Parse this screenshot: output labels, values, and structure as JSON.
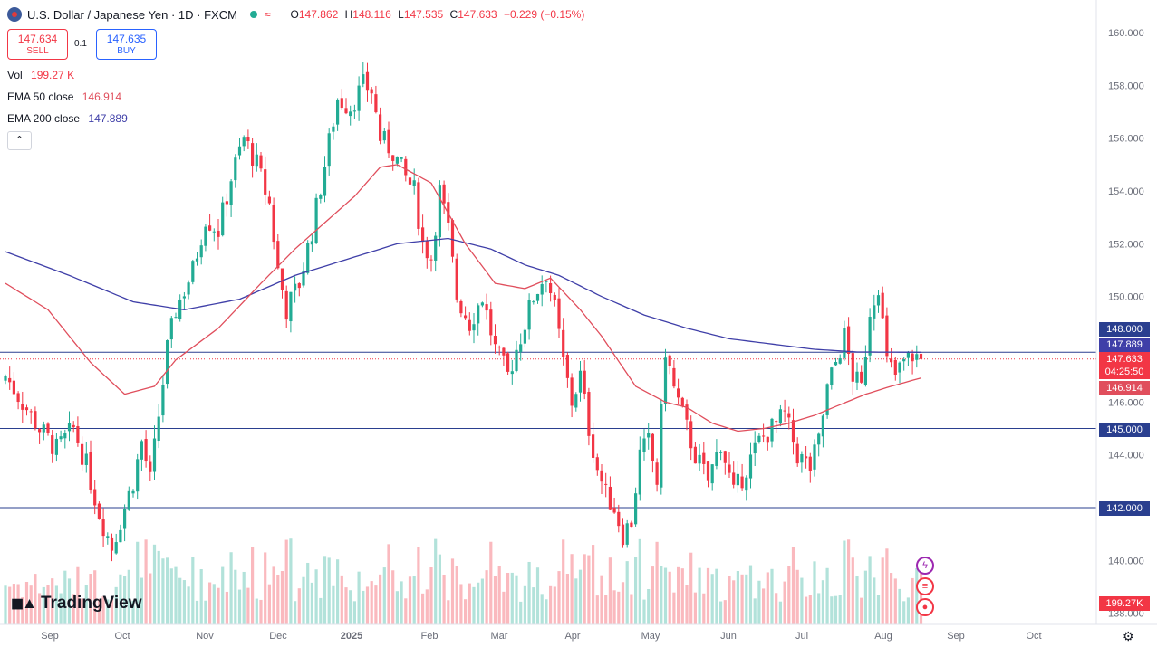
{
  "header": {
    "symbol_title": "U.S. Dollar / Japanese Yen · 1D · FXCM",
    "open_label": "O",
    "open": "147.862",
    "high_label": "H",
    "high": "148.116",
    "low_label": "L",
    "low": "147.535",
    "close_label": "C",
    "close": "147.633",
    "change": "−0.229 (−0.15%)"
  },
  "trade": {
    "sell_price": "147.634",
    "sell_label": "SELL",
    "spread": "0.1",
    "buy_price": "147.635",
    "buy_label": "BUY"
  },
  "indicators": {
    "vol_label": "Vol",
    "vol_value": "199.27 K",
    "ema50_label": "EMA 50 close",
    "ema50_value": "146.914",
    "ema200_label": "EMA 200 close",
    "ema200_value": "147.889"
  },
  "price_tags": {
    "level_148": "148.000",
    "ema200": "147.889",
    "last": "147.633",
    "countdown": "04:25:50",
    "ema50": "146.914",
    "level_145": "145.000",
    "level_142": "142.000",
    "volume": "199.27K"
  },
  "brand": {
    "logo_text": "TradingView"
  },
  "colors": {
    "up": "#22ab94",
    "down": "#f23645",
    "ema50": "#e04e5c",
    "ema200": "#3f3fa8",
    "hline": "#2a3f8f"
  },
  "icons": [
    "flag-icon",
    "lightning-icon",
    "us-flag-icon",
    "event-icon",
    "settings-icon",
    "collapse-icon"
  ],
  "chart_data": {
    "type": "candlestick",
    "title": "U.S. Dollar / Japanese Yen · 1D · FXCM",
    "y_ticks": [
      "160.000",
      "158.000",
      "156.000",
      "154.000",
      "152.000",
      "150.000",
      "148.000",
      "146.000",
      "144.000",
      "142.000",
      "140.000",
      "138.000"
    ],
    "x_ticks": [
      "Sep",
      "Oct",
      "Nov",
      "Dec",
      "2025",
      "Feb",
      "Mar",
      "Apr",
      "May",
      "Jun",
      "Jul",
      "Aug",
      "Sep",
      "Oct"
    ],
    "ylim": [
      137.5,
      160.5
    ],
    "horizontal_lines": [
      147.889,
      145.0,
      142.0
    ],
    "last_price": 147.633,
    "anchor_closes": [
      [
        0,
        147.0
      ],
      [
        4,
        146.0
      ],
      [
        8,
        145.0
      ],
      [
        12,
        144.2
      ],
      [
        16,
        145.0
      ],
      [
        19,
        143.6
      ],
      [
        22,
        141.8
      ],
      [
        25,
        140.5
      ],
      [
        28,
        142.0
      ],
      [
        30,
        143.0
      ],
      [
        32,
        144.5
      ],
      [
        34,
        143.0
      ],
      [
        36,
        145.5
      ],
      [
        38,
        148.0
      ],
      [
        40,
        149.5
      ],
      [
        44,
        151.0
      ],
      [
        47,
        153.0
      ],
      [
        50,
        152.5
      ],
      [
        53,
        154.5
      ],
      [
        56,
        156.0
      ],
      [
        59,
        155.0
      ],
      [
        62,
        153.5
      ],
      [
        64,
        151.0
      ],
      [
        66,
        149.5
      ],
      [
        69,
        150.5
      ],
      [
        72,
        152.5
      ],
      [
        75,
        155.0
      ],
      [
        78,
        157.5
      ],
      [
        81,
        157.2
      ],
      [
        84,
        158.0
      ],
      [
        86,
        157.8
      ],
      [
        88,
        156.0
      ],
      [
        91,
        155.5
      ],
      [
        94,
        154.5
      ],
      [
        96,
        154.0
      ],
      [
        98,
        152.0
      ],
      [
        100,
        151.5
      ],
      [
        102,
        154.0
      ],
      [
        104,
        152.5
      ],
      [
        106,
        150.0
      ],
      [
        109,
        149.0
      ],
      [
        112,
        150.0
      ],
      [
        115,
        148.0
      ],
      [
        118,
        147.0
      ],
      [
        121,
        148.5
      ],
      [
        124,
        150.0
      ],
      [
        127,
        150.9
      ],
      [
        129,
        149.5
      ],
      [
        131,
        147.5
      ],
      [
        133,
        146.0
      ],
      [
        135,
        147.0
      ],
      [
        137,
        145.0
      ],
      [
        139,
        143.5
      ],
      [
        141,
        142.5
      ],
      [
        143,
        142.0
      ],
      [
        145,
        141.0
      ],
      [
        147,
        141.5
      ],
      [
        149,
        144.0
      ],
      [
        151,
        144.5
      ],
      [
        153,
        143.0
      ],
      [
        155,
        148.0
      ],
      [
        157,
        146.5
      ],
      [
        159,
        145.5
      ],
      [
        162,
        144.0
      ],
      [
        165,
        143.0
      ],
      [
        168,
        144.5
      ],
      [
        171,
        142.5
      ],
      [
        174,
        143.5
      ],
      [
        177,
        144.5
      ],
      [
        180,
        145.0
      ],
      [
        183,
        145.5
      ],
      [
        186,
        144.0
      ],
      [
        189,
        143.5
      ],
      [
        191,
        144.5
      ],
      [
        193,
        146.5
      ],
      [
        195,
        147.5
      ],
      [
        197,
        148.5
      ],
      [
        199,
        147.0
      ],
      [
        201,
        146.5
      ],
      [
        203,
        149.5
      ],
      [
        205,
        150.5
      ],
      [
        207,
        147.5
      ],
      [
        209,
        147.0
      ],
      [
        211,
        147.5
      ],
      [
        213,
        147.8
      ],
      [
        215,
        147.633
      ]
    ],
    "ema50": [
      [
        0,
        150.5
      ],
      [
        10,
        149.5
      ],
      [
        20,
        147.5
      ],
      [
        28,
        146.3
      ],
      [
        35,
        146.6
      ],
      [
        40,
        147.6
      ],
      [
        50,
        148.8
      ],
      [
        60,
        150.5
      ],
      [
        68,
        151.8
      ],
      [
        75,
        152.8
      ],
      [
        82,
        153.8
      ],
      [
        88,
        154.9
      ],
      [
        92,
        155.0
      ],
      [
        100,
        154.3
      ],
      [
        108,
        152.0
      ],
      [
        115,
        150.5
      ],
      [
        122,
        150.3
      ],
      [
        128,
        150.7
      ],
      [
        135,
        149.5
      ],
      [
        140,
        148.5
      ],
      [
        148,
        146.6
      ],
      [
        155,
        146.0
      ],
      [
        160,
        145.8
      ],
      [
        166,
        145.2
      ],
      [
        172,
        144.9
      ],
      [
        178,
        145.0
      ],
      [
        184,
        145.2
      ],
      [
        190,
        145.5
      ],
      [
        196,
        145.9
      ],
      [
        202,
        146.3
      ],
      [
        208,
        146.6
      ],
      [
        215,
        146.914
      ]
    ],
    "ema200": [
      [
        0,
        151.7
      ],
      [
        15,
        150.8
      ],
      [
        30,
        149.8
      ],
      [
        42,
        149.5
      ],
      [
        55,
        149.9
      ],
      [
        68,
        150.8
      ],
      [
        80,
        151.4
      ],
      [
        92,
        152.0
      ],
      [
        104,
        152.2
      ],
      [
        114,
        151.8
      ],
      [
        122,
        151.2
      ],
      [
        130,
        150.8
      ],
      [
        140,
        150.0
      ],
      [
        150,
        149.3
      ],
      [
        160,
        148.8
      ],
      [
        170,
        148.4
      ],
      [
        180,
        148.2
      ],
      [
        190,
        148.0
      ],
      [
        200,
        147.9
      ],
      [
        215,
        147.889
      ]
    ],
    "volume_last": "199.27K"
  }
}
